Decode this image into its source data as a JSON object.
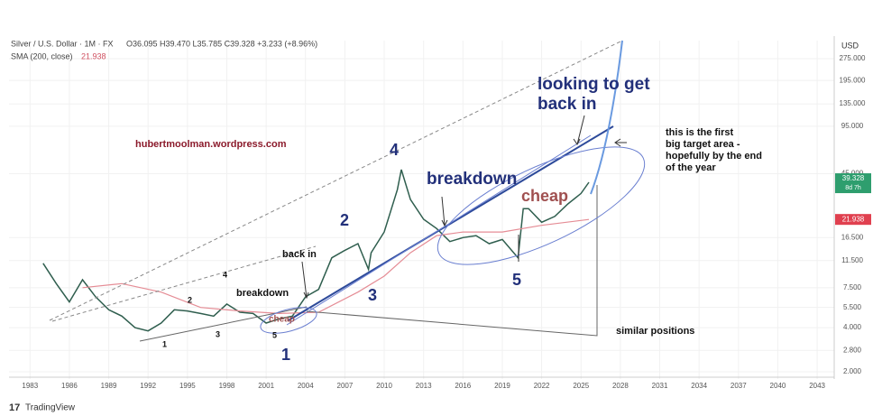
{
  "chart_data": {
    "type": "line",
    "header": "Silver / U.S. Dollar · 1M · FX",
    "ohlc": "O36.095 H39.470 L35.785 C39.328 +3.233 (+8.96%)",
    "currency": "USD",
    "brand": "TradingView",
    "log_scale": true,
    "grid": true,
    "xlim": [
      1981.4,
      2044.3
    ],
    "ylim": [
      1.785,
      365
    ],
    "xticks": [
      1983,
      1986,
      1989,
      1992,
      1995,
      1998,
      2001,
      2004,
      2007,
      2010,
      2013,
      2016,
      2019,
      2022,
      2025,
      2028,
      2031,
      2034,
      2037,
      2040,
      2043
    ],
    "yticks": [
      {
        "value": 2,
        "label": "2.000"
      },
      {
        "value": 2.8,
        "label": "2.800"
      },
      {
        "value": 4,
        "label": "4.000"
      },
      {
        "value": 5.5,
        "label": "5.500"
      },
      {
        "value": 7.5,
        "label": "7.500"
      },
      {
        "value": 11.5,
        "label": "11.500"
      },
      {
        "value": 16.5,
        "label": "16.500"
      },
      {
        "value": 45,
        "label": "45.000"
      },
      {
        "value": 95,
        "label": "95.000"
      },
      {
        "value": 135,
        "label": "135.000"
      },
      {
        "value": 195,
        "label": "195.000"
      },
      {
        "value": 275,
        "label": "275.000"
      }
    ],
    "series": [
      {
        "name": "Silver / U.S. Dollar",
        "color": "#2f5e4e",
        "x": [
          1984,
          1985,
          1986,
          1987,
          1988,
          1989,
          1990,
          1991,
          1992,
          1993,
          1994,
          1995,
          1996,
          1997,
          1998,
          1999,
          2000,
          2001,
          2002,
          2003,
          2004,
          2005,
          2006,
          2007,
          2008,
          2008.8,
          2009,
          2010,
          2011,
          2011.3,
          2012,
          2013,
          2014,
          2015,
          2016,
          2017,
          2018,
          2019,
          2020.2,
          2020.6,
          2021,
          2022,
          2023,
          2024,
          2025,
          2025.6
        ],
        "values": [
          11,
          8,
          6,
          8.5,
          6.5,
          5.3,
          4.8,
          4.0,
          3.8,
          4.3,
          5.3,
          5.2,
          5.0,
          4.8,
          5.8,
          5.1,
          5.0,
          4.3,
          4.6,
          4.8,
          6.5,
          7.3,
          12,
          13.5,
          15,
          10,
          13,
          18,
          35,
          48,
          30,
          22,
          19,
          15.5,
          16.5,
          17,
          15,
          16,
          12,
          26,
          26,
          21,
          23,
          28,
          33,
          39.328
        ]
      },
      {
        "name": "SMA (200, close)",
        "color": "#e58c95",
        "x": [
          1987,
          1990,
          1993,
          1996,
          1999,
          2002,
          2005,
          2008,
          2010,
          2012,
          2014,
          2016,
          2019,
          2022,
          2025.6
        ],
        "values": [
          7.5,
          8,
          7,
          5.5,
          5.2,
          5,
          5.1,
          7,
          9,
          13,
          17,
          18,
          18,
          20,
          21.938
        ]
      }
    ],
    "last_price": {
      "value": 39.328,
      "label": "39.328",
      "countdown": "8d 7h"
    },
    "sma_last": {
      "value": 21.938,
      "label": "21.938"
    },
    "annotations": {
      "site": "hubertmoolman.wordpress.com",
      "looking": [
        "looking to get",
        "back in"
      ],
      "target": [
        "this is the first",
        "big target area -",
        "hopefully by the end",
        "of the year"
      ],
      "breakdown_big": "breakdown",
      "cheap_big": "cheap",
      "w4": "4",
      "w2": "2",
      "w3": "3",
      "w5": "5",
      "w1": "1",
      "back_in": "back in",
      "breakdown_small": "breakdown",
      "cheap_small": "cheap",
      "s4": "4",
      "s2": "2",
      "s1": "1",
      "s3": "3",
      "s5": "5",
      "similar": "similar positions"
    }
  }
}
